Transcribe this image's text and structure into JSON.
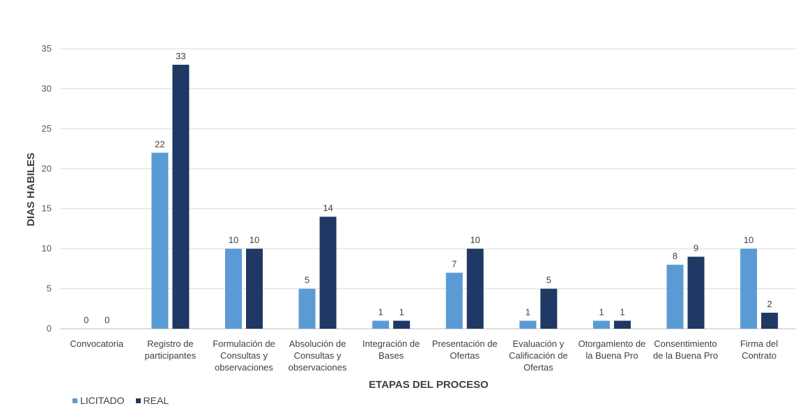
{
  "chart_data": {
    "type": "bar",
    "title": "",
    "xlabel": "ETAPAS DEL PROCESO",
    "ylabel": "DIAS HABILES",
    "ylim": [
      0,
      35
    ],
    "yticks": [
      0,
      5,
      10,
      15,
      20,
      25,
      30,
      35
    ],
    "grid": true,
    "legend_position": "bottom-left",
    "categories": [
      [
        "Convocatoria"
      ],
      [
        "Registro de",
        "participantes"
      ],
      [
        "Formulación de",
        "Consultas y",
        "observaciones"
      ],
      [
        "Absolución de",
        "Consultas y",
        "observaciones"
      ],
      [
        "Integración de",
        "Bases"
      ],
      [
        "Presentación de",
        "Ofertas"
      ],
      [
        "Evaluación y",
        "Calificación de",
        "Ofertas"
      ],
      [
        "Otorgamiento de",
        "la Buena Pro"
      ],
      [
        "Consentimiento",
        "de la Buena Pro"
      ],
      [
        "Firma del",
        "Contrato"
      ]
    ],
    "series": [
      {
        "name": "LICITADO",
        "color": "#5B9BD5",
        "values": [
          0,
          22,
          10,
          5,
          1,
          7,
          1,
          1,
          8,
          10
        ]
      },
      {
        "name": "REAL",
        "color": "#1F3864",
        "values": [
          0,
          33,
          10,
          14,
          1,
          10,
          5,
          1,
          9,
          2
        ]
      }
    ]
  },
  "colors": {
    "grid": "#D9D9D9",
    "axis": "#BFBFBF"
  }
}
